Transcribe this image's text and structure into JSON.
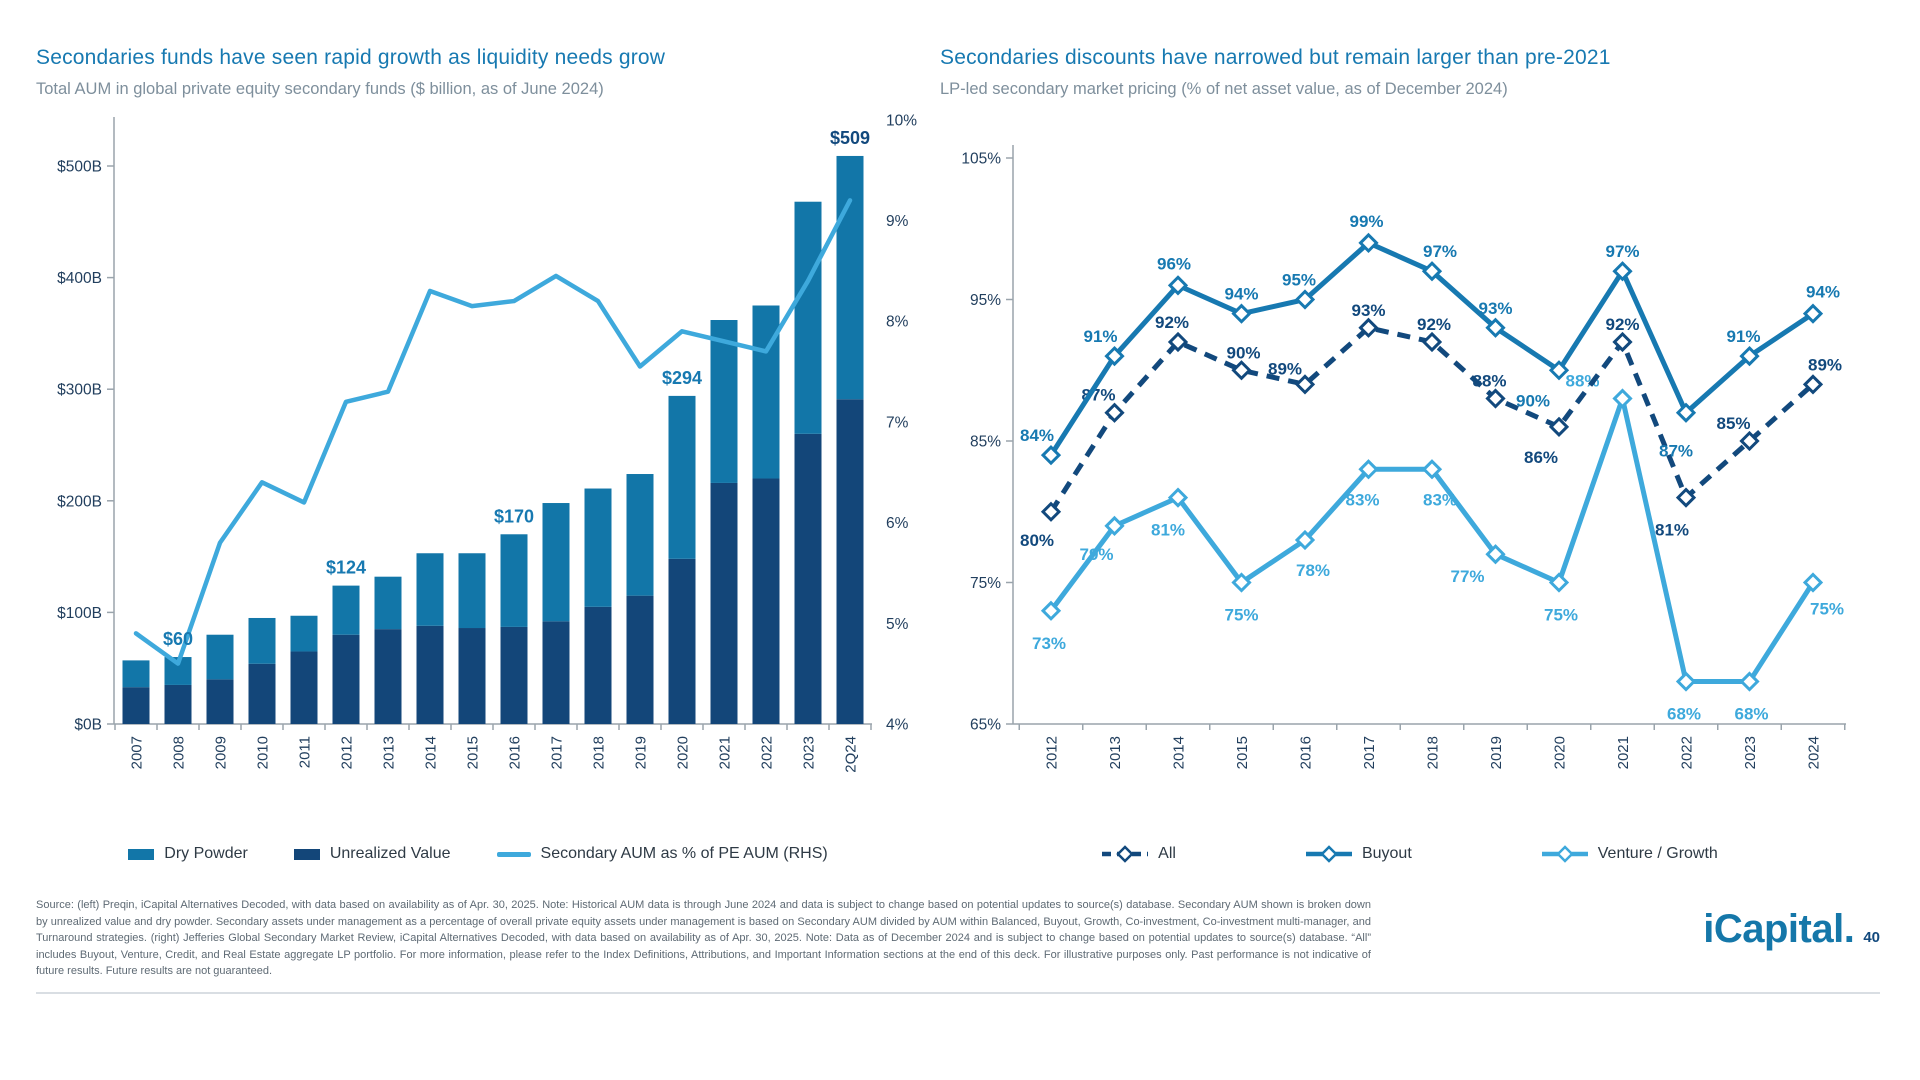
{
  "chart_data": [
    {
      "type": "bar",
      "title": "Secondaries funds have seen rapid growth as liquidity needs grow",
      "subtitle": "Total AUM in global private equity secondary funds ($ billion, as of June 2024)",
      "categories": [
        "2007",
        "2008",
        "2009",
        "2010",
        "2011",
        "2012",
        "2013",
        "2014",
        "2015",
        "2016",
        "2017",
        "2018",
        "2019",
        "2020",
        "2021",
        "2022",
        "2023",
        "2Q24"
      ],
      "series": [
        {
          "name": "Dry Powder",
          "type": "bar",
          "color": "#1276A8",
          "values": [
            24,
            25,
            40,
            41,
            32,
            44,
            47,
            65,
            67,
            83,
            106,
            106,
            109,
            146,
            146,
            155,
            208,
            218
          ]
        },
        {
          "name": "Unrealized Value",
          "type": "bar",
          "color": "#134679",
          "values": [
            33,
            35,
            40,
            54,
            65,
            80,
            85,
            88,
            86,
            87,
            92,
            105,
            115,
            148,
            216,
            220,
            260,
            291
          ]
        },
        {
          "name": "Secondary AUM as % of PE AUM (RHS)",
          "type": "line",
          "axis": "right",
          "color": "#3EA9DC",
          "values": [
            4.9,
            4.6,
            5.8,
            6.4,
            6.2,
            7.2,
            7.3,
            8.3,
            8.15,
            8.2,
            8.45,
            8.2,
            7.55,
            7.9,
            7.8,
            7.7,
            8.4,
            9.2
          ]
        }
      ],
      "totals": [
        57,
        60,
        80,
        95,
        97,
        124,
        132,
        153,
        153,
        170,
        198,
        211,
        224,
        294,
        362,
        375,
        468,
        509
      ],
      "callouts": [
        {
          "category": "2008",
          "label": "$60",
          "color": "#1779B1"
        },
        {
          "category": "2012",
          "label": "$124",
          "color": "#1779B1"
        },
        {
          "category": "2016",
          "label": "$170",
          "color": "#1779B1"
        },
        {
          "category": "2020",
          "label": "$294",
          "color": "#1779B1"
        },
        {
          "category": "2Q24",
          "label": "$509",
          "color": "#12497D"
        }
      ],
      "ylim_left": [
        0,
        500
      ],
      "ytick_step_left": 100,
      "ytick_format_left": "$#B",
      "ylim_right": [
        4,
        10
      ],
      "ytick_step_right": 1,
      "ytick_format_right": "#%",
      "grid": false,
      "legend_position": "bottom"
    },
    {
      "type": "line",
      "title": "Secondaries discounts have narrowed but remain larger than pre-2021",
      "subtitle": "LP-led secondary market pricing (% of net asset value, as of December 2024)",
      "categories": [
        "2012",
        "2013",
        "2014",
        "2015",
        "2016",
        "2017",
        "2018",
        "2019",
        "2020",
        "2021",
        "2022",
        "2023",
        "2024"
      ],
      "series": [
        {
          "name": "All",
          "color": "#12497D",
          "dashed": true,
          "values": [
            80,
            87,
            92,
            90,
            89,
            93,
            92,
            88,
            86,
            92,
            81,
            85,
            89
          ]
        },
        {
          "name": "Buyout",
          "color": "#1779B1",
          "dashed": false,
          "values": [
            84,
            91,
            96,
            94,
            95,
            99,
            97,
            93,
            90,
            97,
            87,
            91,
            94
          ]
        },
        {
          "name": "Venture / Growth",
          "color": "#3EA9DC",
          "dashed": false,
          "values": [
            73,
            79,
            81,
            75,
            78,
            83,
            83,
            77,
            75,
            88,
            68,
            68,
            75
          ]
        }
      ],
      "ylim": [
        65,
        105
      ],
      "ytick_step": 10,
      "ytick_format": "#%",
      "point_label_format": "#%",
      "grid": false,
      "legend_position": "bottom",
      "marker": "diamond"
    }
  ],
  "footer": {
    "text": "Source: (left) Preqin, iCapital Alternatives Decoded, with data based on availability as of Apr. 30, 2025. Note: Historical AUM data is through June 2024 and data is subject to change based on potential updates to source(s) database. Secondary AUM shown is broken down by unrealized value and dry powder. Secondary assets under management as a percentage of overall private equity assets under management is based on Secondary AUM divided by AUM within Balanced, Buyout, Growth, Co-investment, Co-investment multi-manager, and Turnaround strategies. (right) Jefferies Global Secondary Market Review, iCapital Alternatives Decoded, with data based on availability as of Apr. 30, 2025. Note: Data as of December 2024 and is subject to change based on potential updates to source(s) database. “All” includes Buyout, Venture, Credit, and Real Estate aggregate LP portfolio. For more information, please refer to the Index Definitions, Attributions, and Important Information sections at the end of this deck. For illustrative purposes only. Past performance is not indicative of future results. Future results are not guaranteed.",
    "logo_text": "iCapital.",
    "page_number": "40"
  }
}
